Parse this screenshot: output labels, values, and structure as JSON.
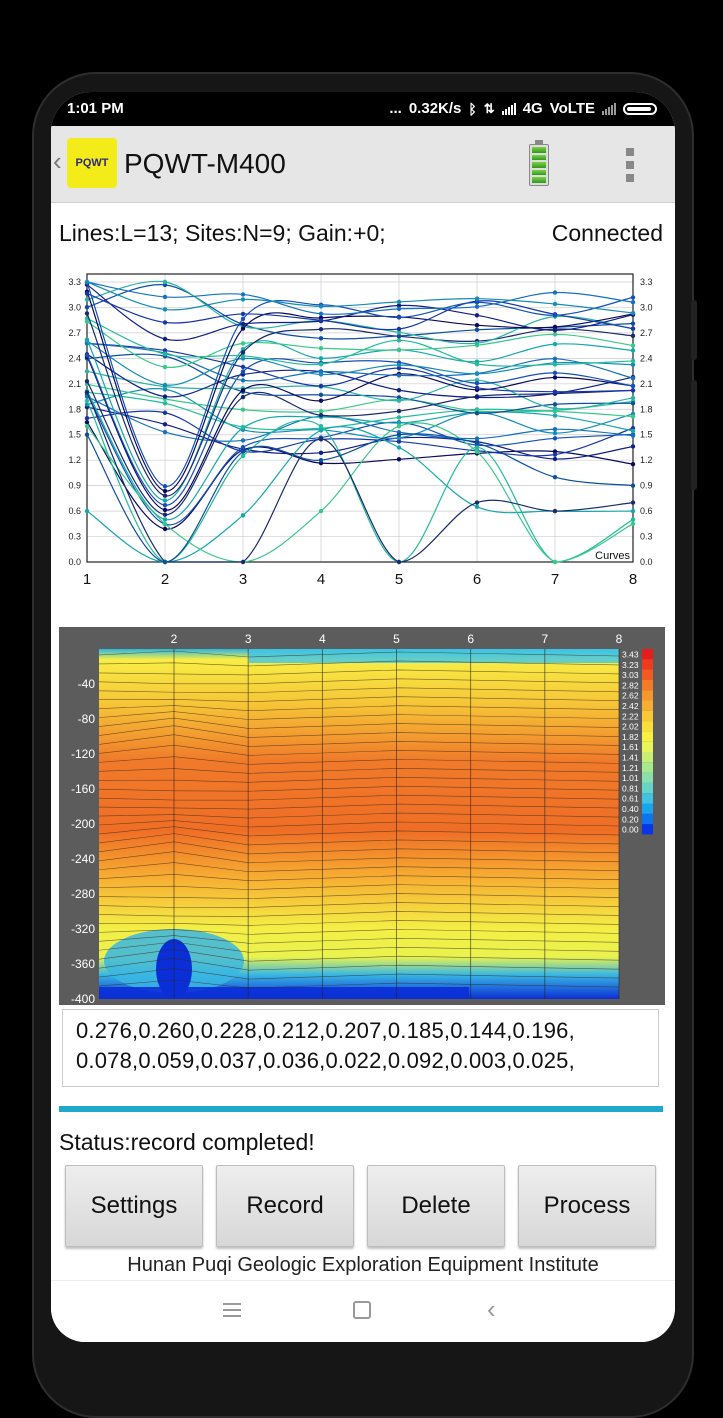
{
  "status_bar": {
    "time": "1:01 PM",
    "dots": "...",
    "speed": "0.32K/s",
    "bluetooth_icon": "bluetooth-icon",
    "network": "4G",
    "volte": "VoLTE"
  },
  "app_bar": {
    "logo_text": "PQWT",
    "title": "PQWT-M400",
    "battery_level": 1.0,
    "menu_icon": "overflow-menu-icon"
  },
  "info": {
    "lines_sites_gain": "Lines:L=13;  Sites:N=9;  Gain:+0;",
    "connection": "Connected"
  },
  "curve_chart": {
    "y_ticks": [
      "0.0",
      "0.3",
      "0.6",
      "0.9",
      "1.2",
      "1.5",
      "1.8",
      "2.1",
      "2.4",
      "2.7",
      "3.0",
      "3.3"
    ],
    "x_ticks": [
      "1",
      "2",
      "3",
      "4",
      "5",
      "6",
      "7",
      "8"
    ],
    "legend": "Curves"
  },
  "section_chart": {
    "x_ticks": [
      "2",
      "3",
      "4",
      "5",
      "6",
      "7",
      "8"
    ],
    "y_ticks": [
      "-40",
      "-80",
      "-120",
      "-160",
      "-200",
      "-240",
      "-280",
      "-320",
      "-360",
      "-400"
    ],
    "scale_labels": [
      "3.43",
      "3.23",
      "3.03",
      "2.82",
      "2.62",
      "2.42",
      "2.22",
      "2.02",
      "1.82",
      "1.61",
      "1.41",
      "1.21",
      "1.01",
      "0.81",
      "0.61",
      "0.40",
      "0.20",
      "0.00"
    ],
    "scale_colors": [
      "#e41d1d",
      "#ee3b1e",
      "#f25a22",
      "#f47a28",
      "#f6962d",
      "#f8ae32",
      "#f9c737",
      "#fbdd3c",
      "#f8ef42",
      "#e8f45a",
      "#c9ef72",
      "#a9e98e",
      "#88e0ad",
      "#66d4c8",
      "#40c2e0",
      "#1ba4ee",
      "#0b74ee",
      "#0636e6"
    ]
  },
  "values": {
    "line1": "0.276,0.260,0.228,0.212,0.207,0.185,0.144,0.196,",
    "line2": "0.078,0.059,0.037,0.036,0.022,0.092,0.003,0.025,"
  },
  "status": "Status:record completed!",
  "buttons": {
    "settings": "Settings",
    "record": "Record",
    "delete": "Delete",
    "process": "Process"
  },
  "footer": "Hunan Puqi Geologic Exploration Equipment Institute",
  "nav": {
    "menu_icon": "recents-icon",
    "home_icon": "home-icon",
    "back_icon": "back-icon"
  }
}
